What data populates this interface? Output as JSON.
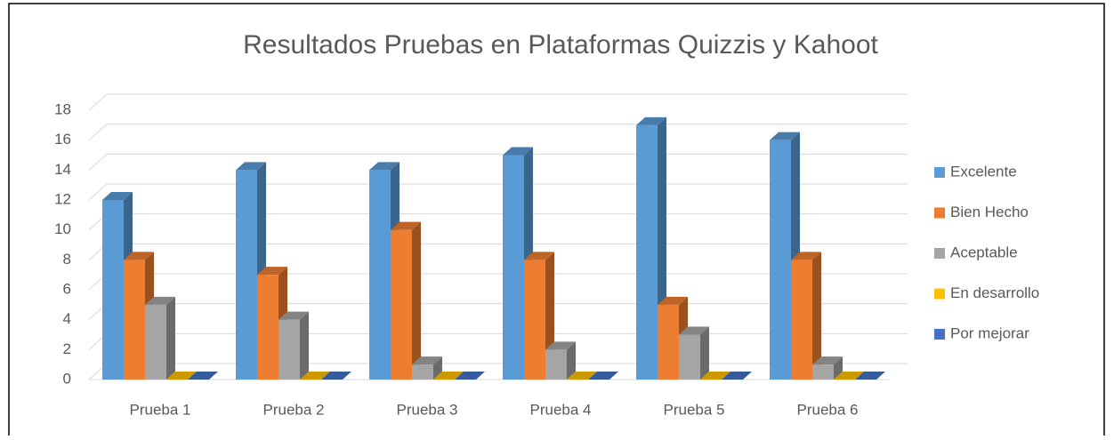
{
  "chart_data": {
    "type": "bar3d",
    "title": "Resultados Pruebas en Plataformas Quizzis y Kahoot",
    "categories": [
      "Prueba 1",
      "Prueba 2",
      "Prueba 3",
      "Prueba 4",
      "Prueba 5",
      "Prueba 6"
    ],
    "series": [
      {
        "name": "Excelente",
        "color": "#5b9bd5",
        "values": [
          12,
          14,
          14,
          15,
          17,
          16
        ]
      },
      {
        "name": "Bien Hecho",
        "color": "#ed7d31",
        "values": [
          8,
          7,
          10,
          8,
          5,
          8
        ]
      },
      {
        "name": "Aceptable",
        "color": "#a5a5a5",
        "values": [
          5,
          4,
          1,
          2,
          3,
          1
        ]
      },
      {
        "name": "En desarrollo",
        "color": "#ffc000",
        "values": [
          0,
          0,
          0,
          0,
          0,
          0
        ]
      },
      {
        "name": "Por mejorar",
        "color": "#4472c4",
        "values": [
          0,
          0,
          0,
          0,
          0,
          0
        ]
      }
    ],
    "ylim": [
      0,
      18
    ],
    "yticks": [
      0,
      2,
      4,
      6,
      8,
      10,
      12,
      14,
      16,
      18
    ],
    "grid": true,
    "legend": "right"
  }
}
